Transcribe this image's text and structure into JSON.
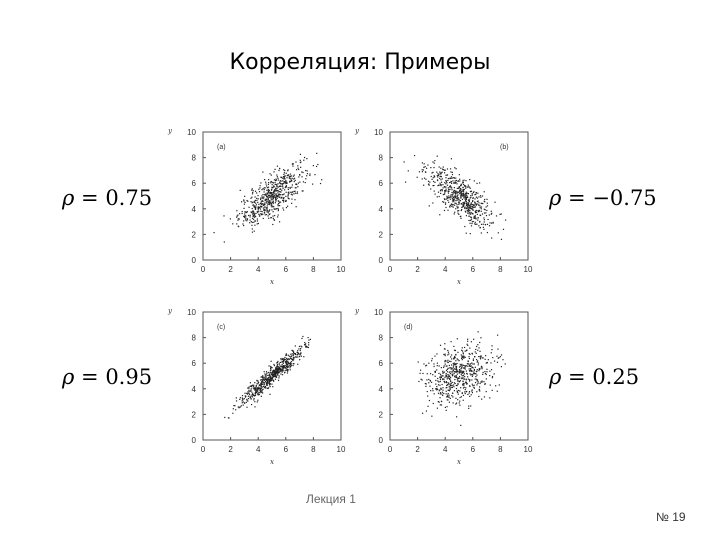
{
  "slide": {
    "title": "Корреляция: Примеры",
    "footer": "Лекция 1",
    "slide_number": "№ 19"
  },
  "labels": {
    "rho_a": "= 0.75",
    "rho_b": "= −0.75",
    "rho_c": "= 0.95",
    "rho_d": "= 0.25",
    "rho_symbol": "ρ"
  },
  "chart_data": [
    {
      "type": "scatter",
      "panel_label": "(a)",
      "xlabel": "x",
      "ylabel": "y",
      "xlim": [
        0,
        10
      ],
      "ylim": [
        0,
        10
      ],
      "xticks": [
        0,
        2,
        4,
        6,
        8,
        10
      ],
      "yticks": [
        0,
        2,
        4,
        6,
        8,
        10
      ],
      "correlation": 0.75,
      "mean": [
        5,
        5
      ],
      "sd": [
        1.2,
        1.2
      ],
      "points": 600,
      "point_color": "#222222"
    },
    {
      "type": "scatter",
      "panel_label": "(b)",
      "xlabel": "x",
      "ylabel": "y",
      "xlim": [
        0,
        10
      ],
      "ylim": [
        0,
        10
      ],
      "xticks": [
        0,
        2,
        4,
        6,
        8,
        10
      ],
      "yticks": [
        0,
        2,
        4,
        6,
        8,
        10
      ],
      "correlation": -0.75,
      "mean": [
        5,
        5
      ],
      "sd": [
        1.2,
        1.2
      ],
      "points": 600,
      "point_color": "#222222"
    },
    {
      "type": "scatter",
      "panel_label": "(c)",
      "xlabel": "x",
      "ylabel": "y",
      "xlim": [
        0,
        10
      ],
      "ylim": [
        0,
        10
      ],
      "xticks": [
        0,
        2,
        4,
        6,
        8,
        10
      ],
      "yticks": [
        0,
        2,
        4,
        6,
        8,
        10
      ],
      "correlation": 0.95,
      "mean": [
        5,
        5
      ],
      "sd": [
        1.2,
        1.2
      ],
      "points": 600,
      "point_color": "#222222"
    },
    {
      "type": "scatter",
      "panel_label": "(d)",
      "xlabel": "x",
      "ylabel": "y",
      "xlim": [
        0,
        10
      ],
      "ylim": [
        0,
        10
      ],
      "xticks": [
        0,
        2,
        4,
        6,
        8,
        10
      ],
      "yticks": [
        0,
        2,
        4,
        6,
        8,
        10
      ],
      "correlation": 0.25,
      "mean": [
        5,
        5
      ],
      "sd": [
        1.2,
        1.2
      ],
      "points": 600,
      "point_color": "#222222"
    }
  ]
}
